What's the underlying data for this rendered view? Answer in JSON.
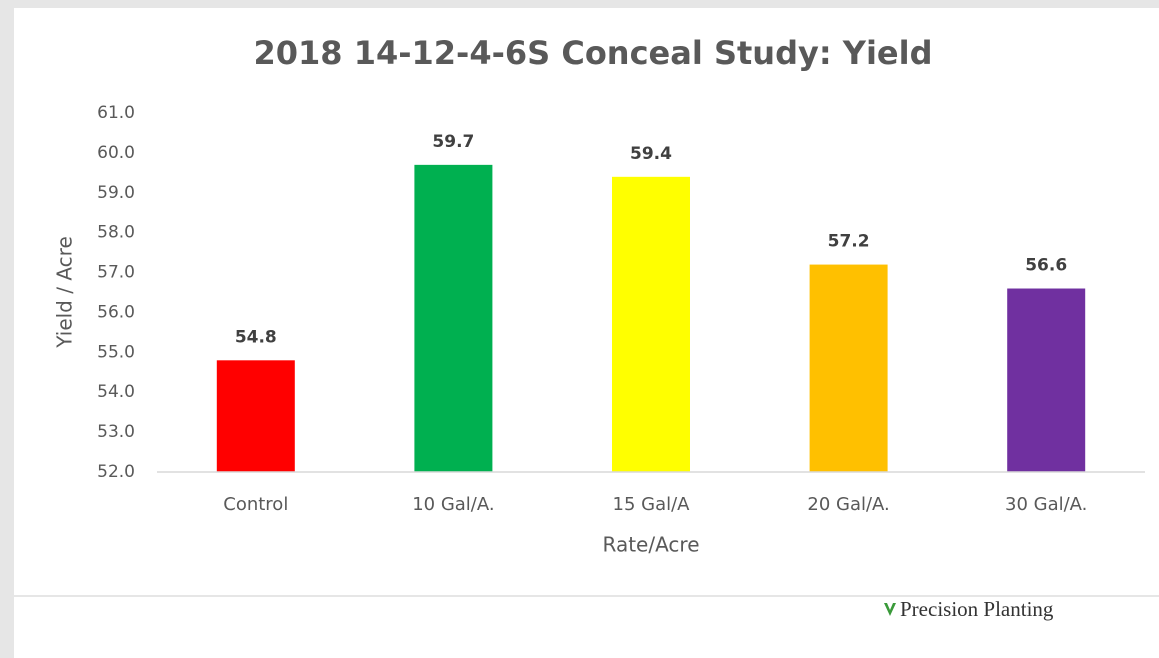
{
  "chart_data": {
    "type": "bar",
    "title": "2018 14-12-4-6S Conceal Study: Yield",
    "categories": [
      "Control",
      "10 Gal/A.",
      "15 Gal/A",
      "20 Gal/A.",
      "30 Gal/A."
    ],
    "values": [
      54.8,
      59.7,
      59.4,
      57.2,
      56.6
    ],
    "colors": [
      "#ff0000",
      "#00b050",
      "#ffff00",
      "#ffc000",
      "#7030a0"
    ],
    "x_label": "Rate/Acre",
    "y_label": "Yield / Acre",
    "ylim": [
      52,
      61
    ],
    "yticks": [
      {
        "value": 52,
        "label": "52.0"
      },
      {
        "value": 53,
        "label": "53.0"
      },
      {
        "value": 54,
        "label": "54.0"
      },
      {
        "value": 55,
        "label": "55.0"
      },
      {
        "value": 56,
        "label": "56.0"
      },
      {
        "value": 57,
        "label": "57.0"
      },
      {
        "value": 58,
        "label": "58.0"
      },
      {
        "value": 59,
        "label": "59.0"
      },
      {
        "value": 60,
        "label": "60.0"
      },
      {
        "value": 61,
        "label": "61.0"
      }
    ],
    "grid": false
  },
  "footer": "Precision Planting"
}
